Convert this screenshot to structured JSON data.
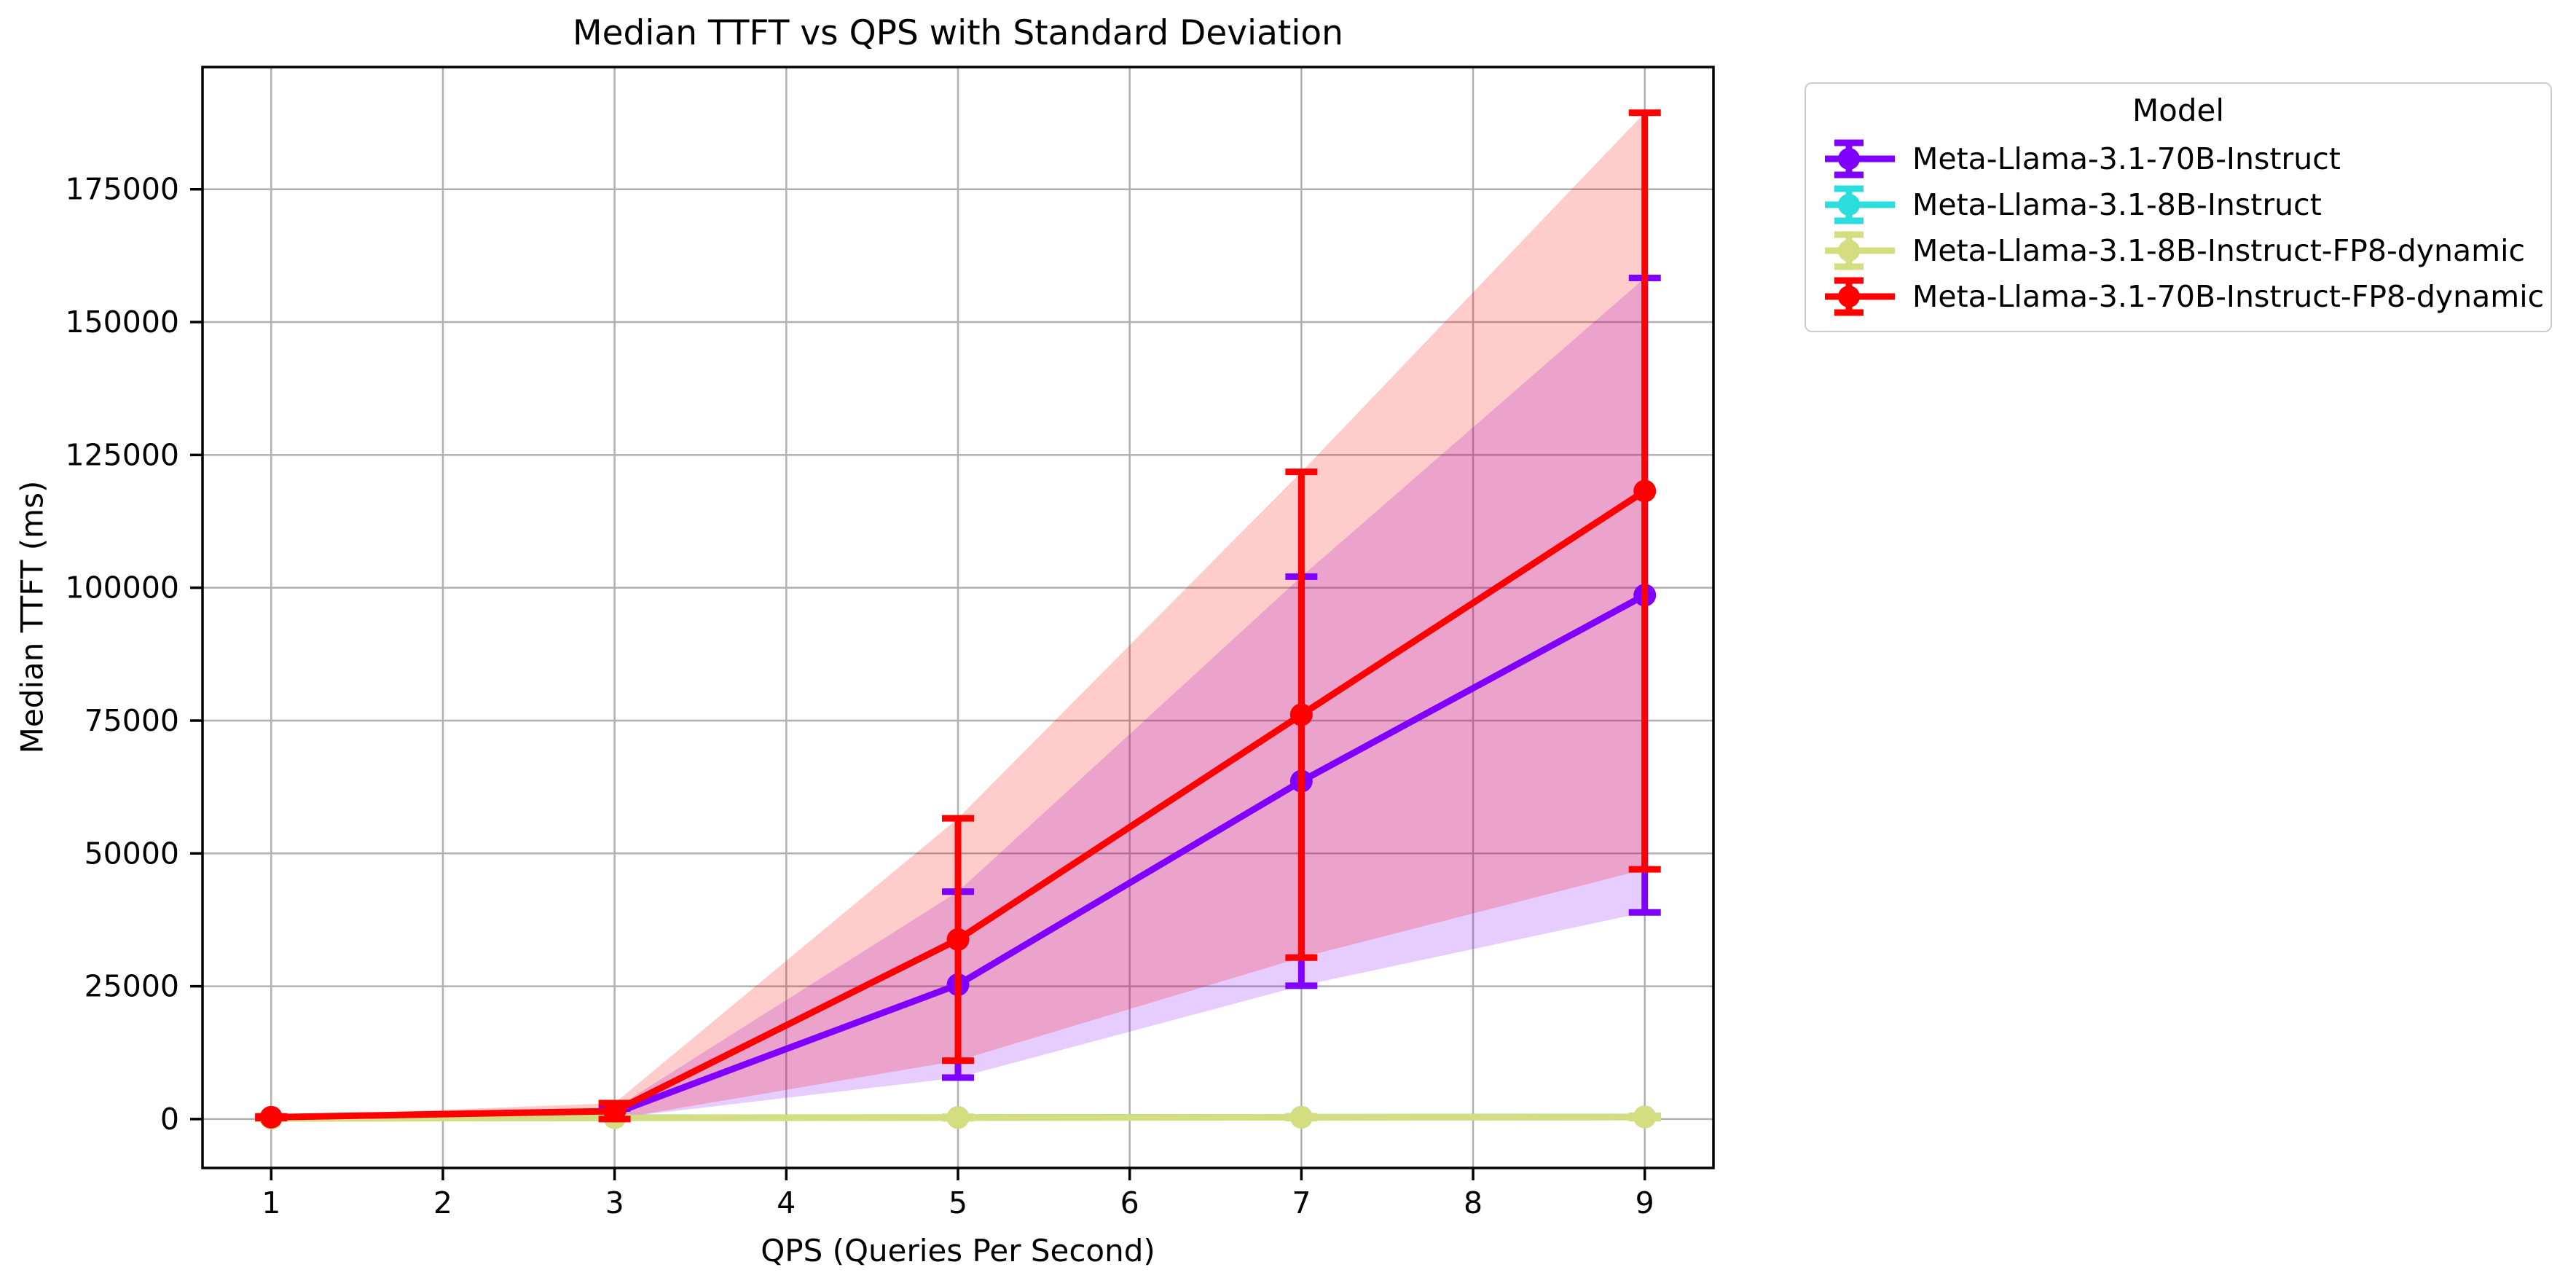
{
  "chart_data": {
    "type": "line",
    "title": "Median TTFT vs QPS with Standard Deviation",
    "xlabel": "QPS (Queries Per Second)",
    "ylabel": "Median TTFT (ms)",
    "x": [
      1,
      3,
      5,
      7,
      9
    ],
    "series": [
      {
        "name": "Meta-Llama-3.1-70B-Instruct",
        "color": "#8000ff",
        "median": [
          300,
          1100,
          25300,
          63600,
          98600
        ],
        "std": [
          100,
          900,
          17500,
          38500,
          59700
        ]
      },
      {
        "name": "Meta-Llama-3.1-8B-Instruct",
        "color": "#2bdddd",
        "median": [
          150,
          250,
          300,
          350,
          400
        ],
        "std": [
          50,
          80,
          120,
          150,
          200
        ]
      },
      {
        "name": "Meta-Llama-3.1-8B-Instruct-FP8-dynamic",
        "color": "#d4dd80",
        "median": [
          140,
          230,
          280,
          330,
          380
        ],
        "std": [
          50,
          80,
          120,
          150,
          200
        ]
      },
      {
        "name": "Meta-Llama-3.1-70B-Instruct-FP8-dynamic",
        "color": "#ff0000",
        "median": [
          350,
          1500,
          33800,
          76100,
          118200
        ],
        "std": [
          150,
          1500,
          22800,
          45700,
          71200
        ]
      }
    ],
    "x_ticks": [
      1,
      2,
      3,
      4,
      5,
      6,
      7,
      8,
      9
    ],
    "y_ticks": [
      0,
      25000,
      50000,
      75000,
      100000,
      125000,
      150000,
      175000
    ],
    "xlim": [
      0.6,
      9.4
    ],
    "ylim": [
      -9200,
      198000
    ],
    "grid": true,
    "band": "median±std",
    "error_bars": true,
    "legend": {
      "title": "Model",
      "position": "outside-right"
    }
  },
  "colors": {
    "grid": "#b0b0b0",
    "spine": "#000000",
    "text": "#000000",
    "background": "#ffffff",
    "band_opacity": "0.2",
    "legend_border": "#cccccc"
  }
}
